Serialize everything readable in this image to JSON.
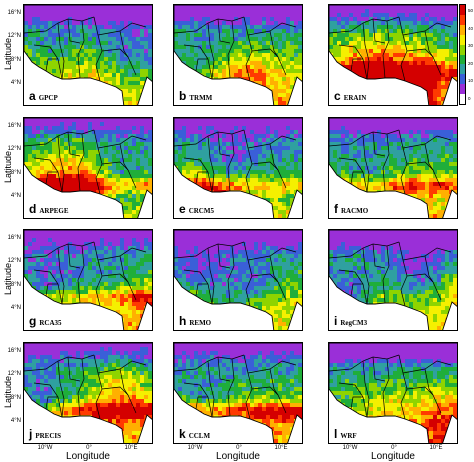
{
  "figure": {
    "y_axis_label": "Latitude",
    "x_axis_label": "Longitude",
    "lat_ticks": [
      "16°N",
      "12°N",
      "8°N",
      "4°N"
    ],
    "lon_ticks": [
      "10°W",
      "0°",
      "10°E"
    ]
  },
  "panels": [
    {
      "letter": "a",
      "name": "GPCP",
      "wet": 0.05,
      "dry": 0.35
    },
    {
      "letter": "b",
      "name": "TRMM",
      "wet": 0.08,
      "dry": 0.3
    },
    {
      "letter": "c",
      "name": "ERAIN",
      "wet": 0.55,
      "dry": 0.25
    },
    {
      "letter": "d",
      "name": "ARPEGE",
      "wet": 0.75,
      "dry": 0.2
    },
    {
      "letter": "e",
      "name": "CRCM5",
      "wet": 0.45,
      "dry": 0.2
    },
    {
      "letter": "f",
      "name": "RACMO",
      "wet": 0.6,
      "dry": 0.25
    },
    {
      "letter": "g",
      "name": "RCA35",
      "wet": 0.5,
      "dry": 0.2
    },
    {
      "letter": "h",
      "name": "REMO",
      "wet": 0.1,
      "dry": 0.3
    },
    {
      "letter": "i",
      "name": "RegCM3",
      "wet": 0.08,
      "dry": 0.45
    },
    {
      "letter": "j",
      "name": "PRECIS",
      "wet": 0.65,
      "dry": 0.2
    },
    {
      "letter": "k",
      "name": "CCLM",
      "wet": 0.7,
      "dry": 0.2
    },
    {
      "letter": "l",
      "name": "WRF",
      "wet": 0.02,
      "dry": 0.55
    }
  ],
  "colorbar": {
    "ticks": [
      "50",
      "40",
      "30",
      "20",
      "10",
      "0"
    ],
    "colors": [
      "#d40000",
      "#ff3a00",
      "#ffb000",
      "#f5f000",
      "#8fd400",
      "#1fae3a",
      "#2fa0a0",
      "#3a5fd8",
      "#9a2fd8",
      "#ffffff"
    ]
  }
}
